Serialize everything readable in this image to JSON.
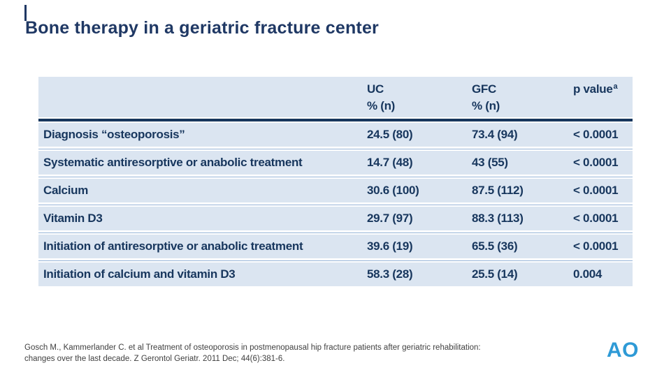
{
  "slide": {
    "title": "Bone therapy in a geriatric fracture center",
    "citation": "Gosch M., Kammerlander C. et al Treatment of osteoporosis in postmenopausal hip fracture patients after geriatric rehabilitation: changes over the last decade. Z Gerontol Geriatr. 2011 Dec; 44(6):381-6.",
    "logo_text": "AO",
    "colors": {
      "title": "#1F3864",
      "table_text": "#17365D",
      "row_background": "#DBE5F1",
      "header_rule": "#17365D",
      "row_rule": "#95B3D7",
      "logo_blue": "#2E9AD6"
    }
  },
  "table": {
    "columns": [
      {
        "line1": "UC",
        "line2": "% (n)"
      },
      {
        "line1": "GFC",
        "line2": "% (n)"
      },
      {
        "line1": "p value",
        "sup": "a"
      }
    ],
    "rows": [
      {
        "label": "Diagnosis “osteoporosis”",
        "uc": "24.5 (80)",
        "gfc": "73.4 (94)",
        "p": "< 0.0001"
      },
      {
        "label": "Systematic antiresorptive or anabolic treatment",
        "uc": "14.7 (48)",
        "gfc": "43 (55)",
        "p": "< 0.0001"
      },
      {
        "label": "Calcium",
        "uc": "30.6 (100)",
        "gfc": "87.5 (112)",
        "p": "< 0.0001"
      },
      {
        "label": "Vitamin D3",
        "uc": "29.7 (97)",
        "gfc": "88.3 (113)",
        "p": "< 0.0001"
      },
      {
        "label": "Initiation of antiresorptive or anabolic treatment",
        "uc": "39.6 (19)",
        "gfc": "65.5 (36)",
        "p": "< 0.0001"
      },
      {
        "label": "Initiation of calcium and vitamin D3",
        "uc": "58.3 (28)",
        "gfc": "25.5 (14)",
        "p": "0.004"
      }
    ]
  },
  "chart_data": {
    "type": "table",
    "title": "Bone therapy in a geriatric fracture center",
    "columns": [
      "",
      "UC % (n)",
      "GFC % (n)",
      "p value"
    ],
    "rows": [
      [
        "Diagnosis “osteoporosis”",
        "24.5 (80)",
        "73.4 (94)",
        "< 0.0001"
      ],
      [
        "Systematic antiresorptive or anabolic treatment",
        "14.7 (48)",
        "43 (55)",
        "< 0.0001"
      ],
      [
        "Calcium",
        "30.6 (100)",
        "87.5 (112)",
        "< 0.0001"
      ],
      [
        "Vitamin D3",
        "29.7 (97)",
        "88.3 (113)",
        "< 0.0001"
      ],
      [
        "Initiation of antiresorptive or anabolic treatment",
        "39.6 (19)",
        "65.5 (36)",
        "< 0.0001"
      ],
      [
        "Initiation of calcium and vitamin D3",
        "58.3 (28)",
        "25.5 (14)",
        "0.004"
      ]
    ]
  }
}
